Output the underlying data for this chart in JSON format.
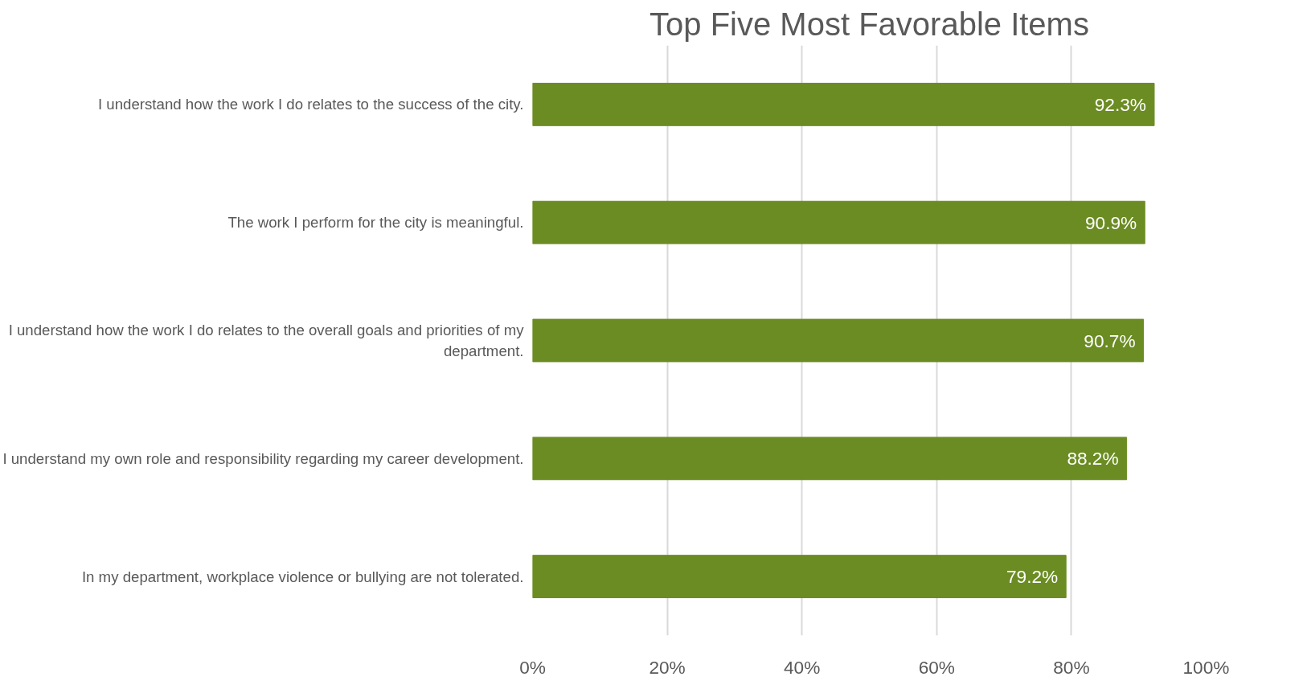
{
  "chart_data": {
    "type": "bar",
    "orientation": "horizontal",
    "title": "Top Five Most Favorable Items",
    "categories": [
      "I understand how the work I do relates to the success of the city.",
      "The work I perform for the city is meaningful.",
      "I understand how the work I do relates to the overall goals and priorities of my department.",
      "I understand my own role and responsibility regarding my career development.",
      "In my department, workplace violence or bullying are not tolerated."
    ],
    "values": [
      92.3,
      90.9,
      90.7,
      88.2,
      79.2
    ],
    "value_labels": [
      "92.3%",
      "90.9%",
      "90.7%",
      "88.2%",
      "79.2%"
    ],
    "color": "#6b8c23",
    "xlim": [
      0,
      100
    ],
    "xticks": [
      {
        "value": 0,
        "label": "0%"
      },
      {
        "value": 20,
        "label": "20%"
      },
      {
        "value": 40,
        "label": "40%"
      },
      {
        "value": 60,
        "label": "60%"
      },
      {
        "value": 80,
        "label": "80%"
      },
      {
        "value": 100,
        "label": "100%"
      }
    ],
    "grid": "x"
  }
}
